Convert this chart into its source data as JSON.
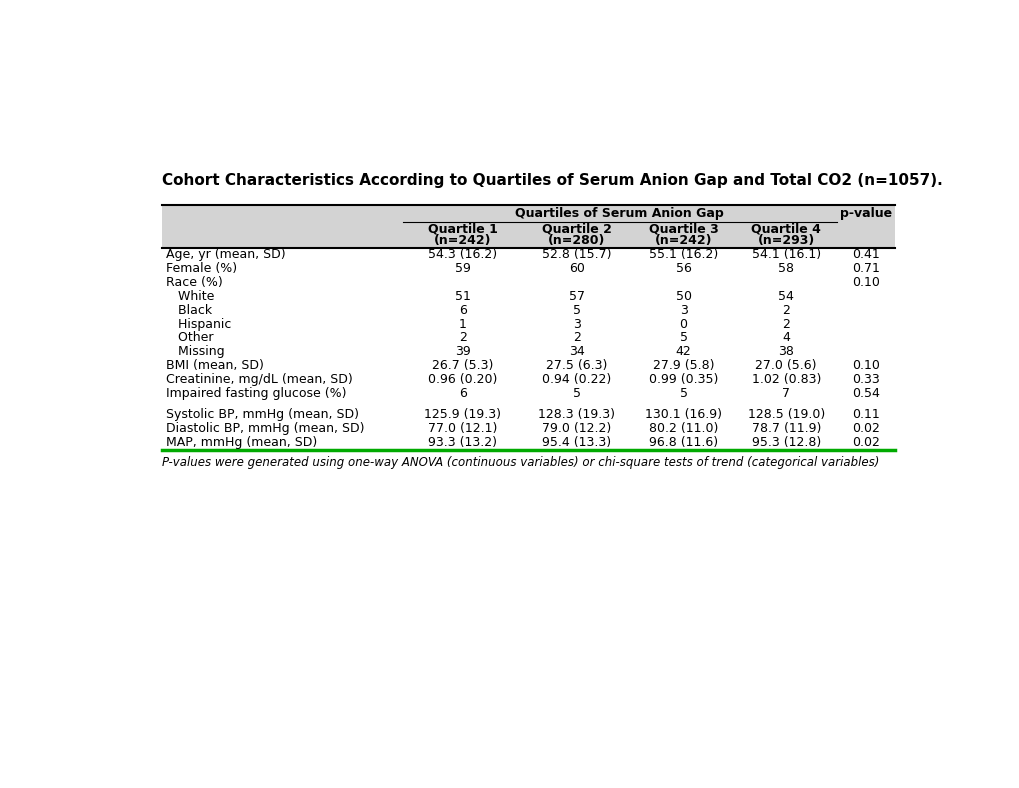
{
  "title": "Cohort Characteristics According to Quartiles of Serum Anion Gap and Total CO2 (n=1057).",
  "header_group": "Quartiles of Serum Anion Gap",
  "pvalue_label": "p-value",
  "col_headers_line1": [
    "Quartile 1",
    "Quartile 2",
    "Quartile 3",
    "Quartile 4"
  ],
  "col_headers_line2": [
    "(n=242)",
    "(n=280)",
    "(n=242)",
    "(n=293)"
  ],
  "rows": [
    {
      "label": "Age, yr (mean, SD)",
      "indent": 0,
      "values": [
        "54.3 (16.2)",
        "52.8 (15.7)",
        "55.1 (16.2)",
        "54.1 (16.1)"
      ],
      "pvalue": "0.41",
      "spacer": false
    },
    {
      "label": "Female (%)",
      "indent": 0,
      "values": [
        "59",
        "60",
        "56",
        "58"
      ],
      "pvalue": "0.71",
      "spacer": false
    },
    {
      "label": "Race (%)",
      "indent": 0,
      "values": [
        "",
        "",
        "",
        ""
      ],
      "pvalue": "0.10",
      "spacer": false
    },
    {
      "label": "   White",
      "indent": 0,
      "values": [
        "51",
        "57",
        "50",
        "54"
      ],
      "pvalue": "",
      "spacer": false
    },
    {
      "label": "   Black",
      "indent": 0,
      "values": [
        "6",
        "5",
        "3",
        "2"
      ],
      "pvalue": "",
      "spacer": false
    },
    {
      "label": "   Hispanic",
      "indent": 0,
      "values": [
        "1",
        "3",
        "0",
        "2"
      ],
      "pvalue": "",
      "spacer": false
    },
    {
      "label": "   Other",
      "indent": 0,
      "values": [
        "2",
        "2",
        "5",
        "4"
      ],
      "pvalue": "",
      "spacer": false
    },
    {
      "label": "   Missing",
      "indent": 0,
      "values": [
        "39",
        "34",
        "42",
        "38"
      ],
      "pvalue": "",
      "spacer": false
    },
    {
      "label": "BMI (mean, SD)",
      "indent": 0,
      "values": [
        "26.7 (5.3)",
        "27.5 (6.3)",
        "27.9 (5.8)",
        "27.0 (5.6)"
      ],
      "pvalue": "0.10",
      "spacer": false
    },
    {
      "label": "Creatinine, mg/dL (mean, SD)",
      "indent": 0,
      "values": [
        "0.96 (0.20)",
        "0.94 (0.22)",
        "0.99 (0.35)",
        "1.02 (0.83)"
      ],
      "pvalue": "0.33",
      "spacer": false
    },
    {
      "label": "Impaired fasting glucose (%)",
      "indent": 0,
      "values": [
        "6",
        "5",
        "5",
        "7"
      ],
      "pvalue": "0.54",
      "spacer": false
    },
    {
      "label": "",
      "indent": 0,
      "values": [
        "",
        "",
        "",
        ""
      ],
      "pvalue": "",
      "spacer": true
    },
    {
      "label": "Systolic BP, mmHg (mean, SD)",
      "indent": 0,
      "values": [
        "125.9 (19.3)",
        "128.3 (19.3)",
        "130.1 (16.9)",
        "128.5 (19.0)"
      ],
      "pvalue": "0.11",
      "spacer": false
    },
    {
      "label": "Diastolic BP, mmHg (mean, SD)",
      "indent": 0,
      "values": [
        "77.0 (12.1)",
        "79.0 (12.2)",
        "80.2 (11.0)",
        "78.7 (11.9)"
      ],
      "pvalue": "0.02",
      "spacer": false
    },
    {
      "label": "MAP, mmHg (mean, SD)",
      "indent": 0,
      "values": [
        "93.3 (13.2)",
        "95.4 (13.3)",
        "96.8 (11.6)",
        "95.3 (12.8)"
      ],
      "pvalue": "0.02",
      "spacer": false,
      "last_row": true
    }
  ],
  "footnote": "P-values were generated using one-way ANOVA (continuous variables) or chi-square tests of trend (categorical variables)",
  "header_bg": "#d3d3d3",
  "title_fontsize": 11.0,
  "header_fontsize": 9.0,
  "cell_fontsize": 9.0,
  "footnote_fontsize": 8.5,
  "green_line_color": "#00aa00"
}
